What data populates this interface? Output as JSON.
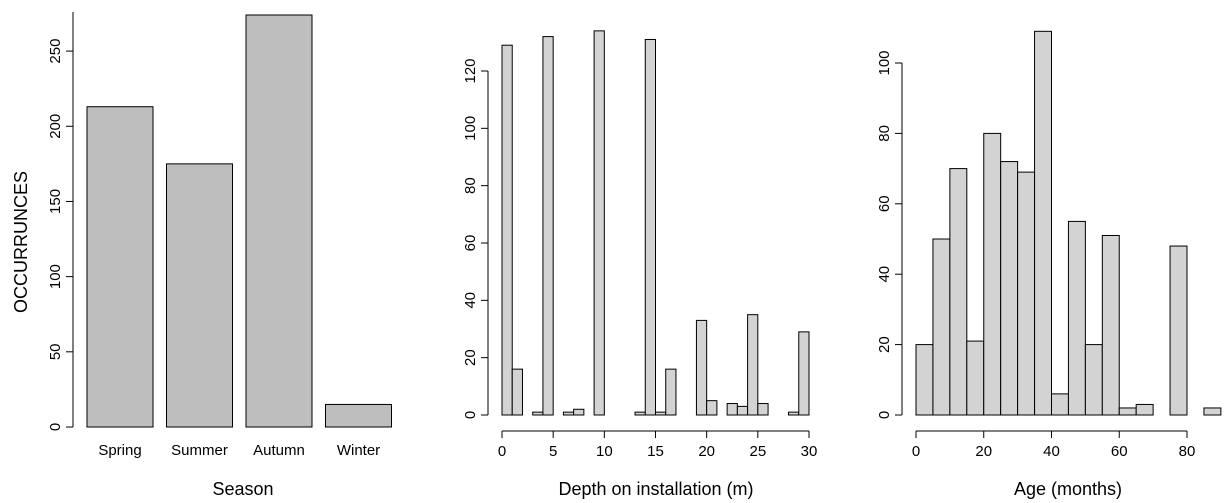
{
  "colors": {
    "bar_fill_season": "#bebebe",
    "bar_fill_hist": "#d3d3d3",
    "stroke": "#000000"
  },
  "chart_data": [
    {
      "type": "bar",
      "categories": [
        "Spring",
        "Summer",
        "Autumn",
        "Winter"
      ],
      "values": [
        213,
        175,
        274,
        15
      ],
      "xlabel": "Season",
      "ylabel": "OCCURRUNCES",
      "ylim": [
        0,
        277
      ],
      "yticks": [
        "0",
        "50",
        "100",
        "150",
        "200",
        "250"
      ]
    },
    {
      "type": "bar",
      "xlabel": "Depth on installation (m)",
      "ylabel": "",
      "bin_width": 1,
      "x_start": 0,
      "values": [
        129,
        16,
        0,
        1,
        132,
        0,
        1,
        2,
        0,
        134,
        0,
        0,
        0,
        1,
        131,
        1,
        16,
        0,
        0,
        33,
        5,
        0,
        4,
        3,
        35,
        4,
        0,
        0,
        1,
        29
      ],
      "ylim": [
        0,
        138
      ],
      "xlim": [
        0,
        30
      ],
      "yticks": [
        "0",
        "20",
        "40",
        "60",
        "80",
        "100",
        "120"
      ],
      "xticks": [
        "0",
        "5",
        "10",
        "15",
        "20",
        "25",
        "30"
      ]
    },
    {
      "type": "bar",
      "xlabel": "Age (months)",
      "ylabel": "",
      "bin_width": 5,
      "x_start": 0,
      "values": [
        20,
        50,
        70,
        21,
        80,
        72,
        69,
        109,
        6,
        55,
        20,
        51,
        2,
        3,
        0,
        48,
        0,
        2
      ],
      "ylim": [
        0,
        112
      ],
      "xlim": [
        0,
        90
      ],
      "yticks": [
        "0",
        "20",
        "40",
        "60",
        "80",
        "100"
      ],
      "xticks": [
        "0",
        "20",
        "40",
        "60",
        "80"
      ]
    }
  ]
}
